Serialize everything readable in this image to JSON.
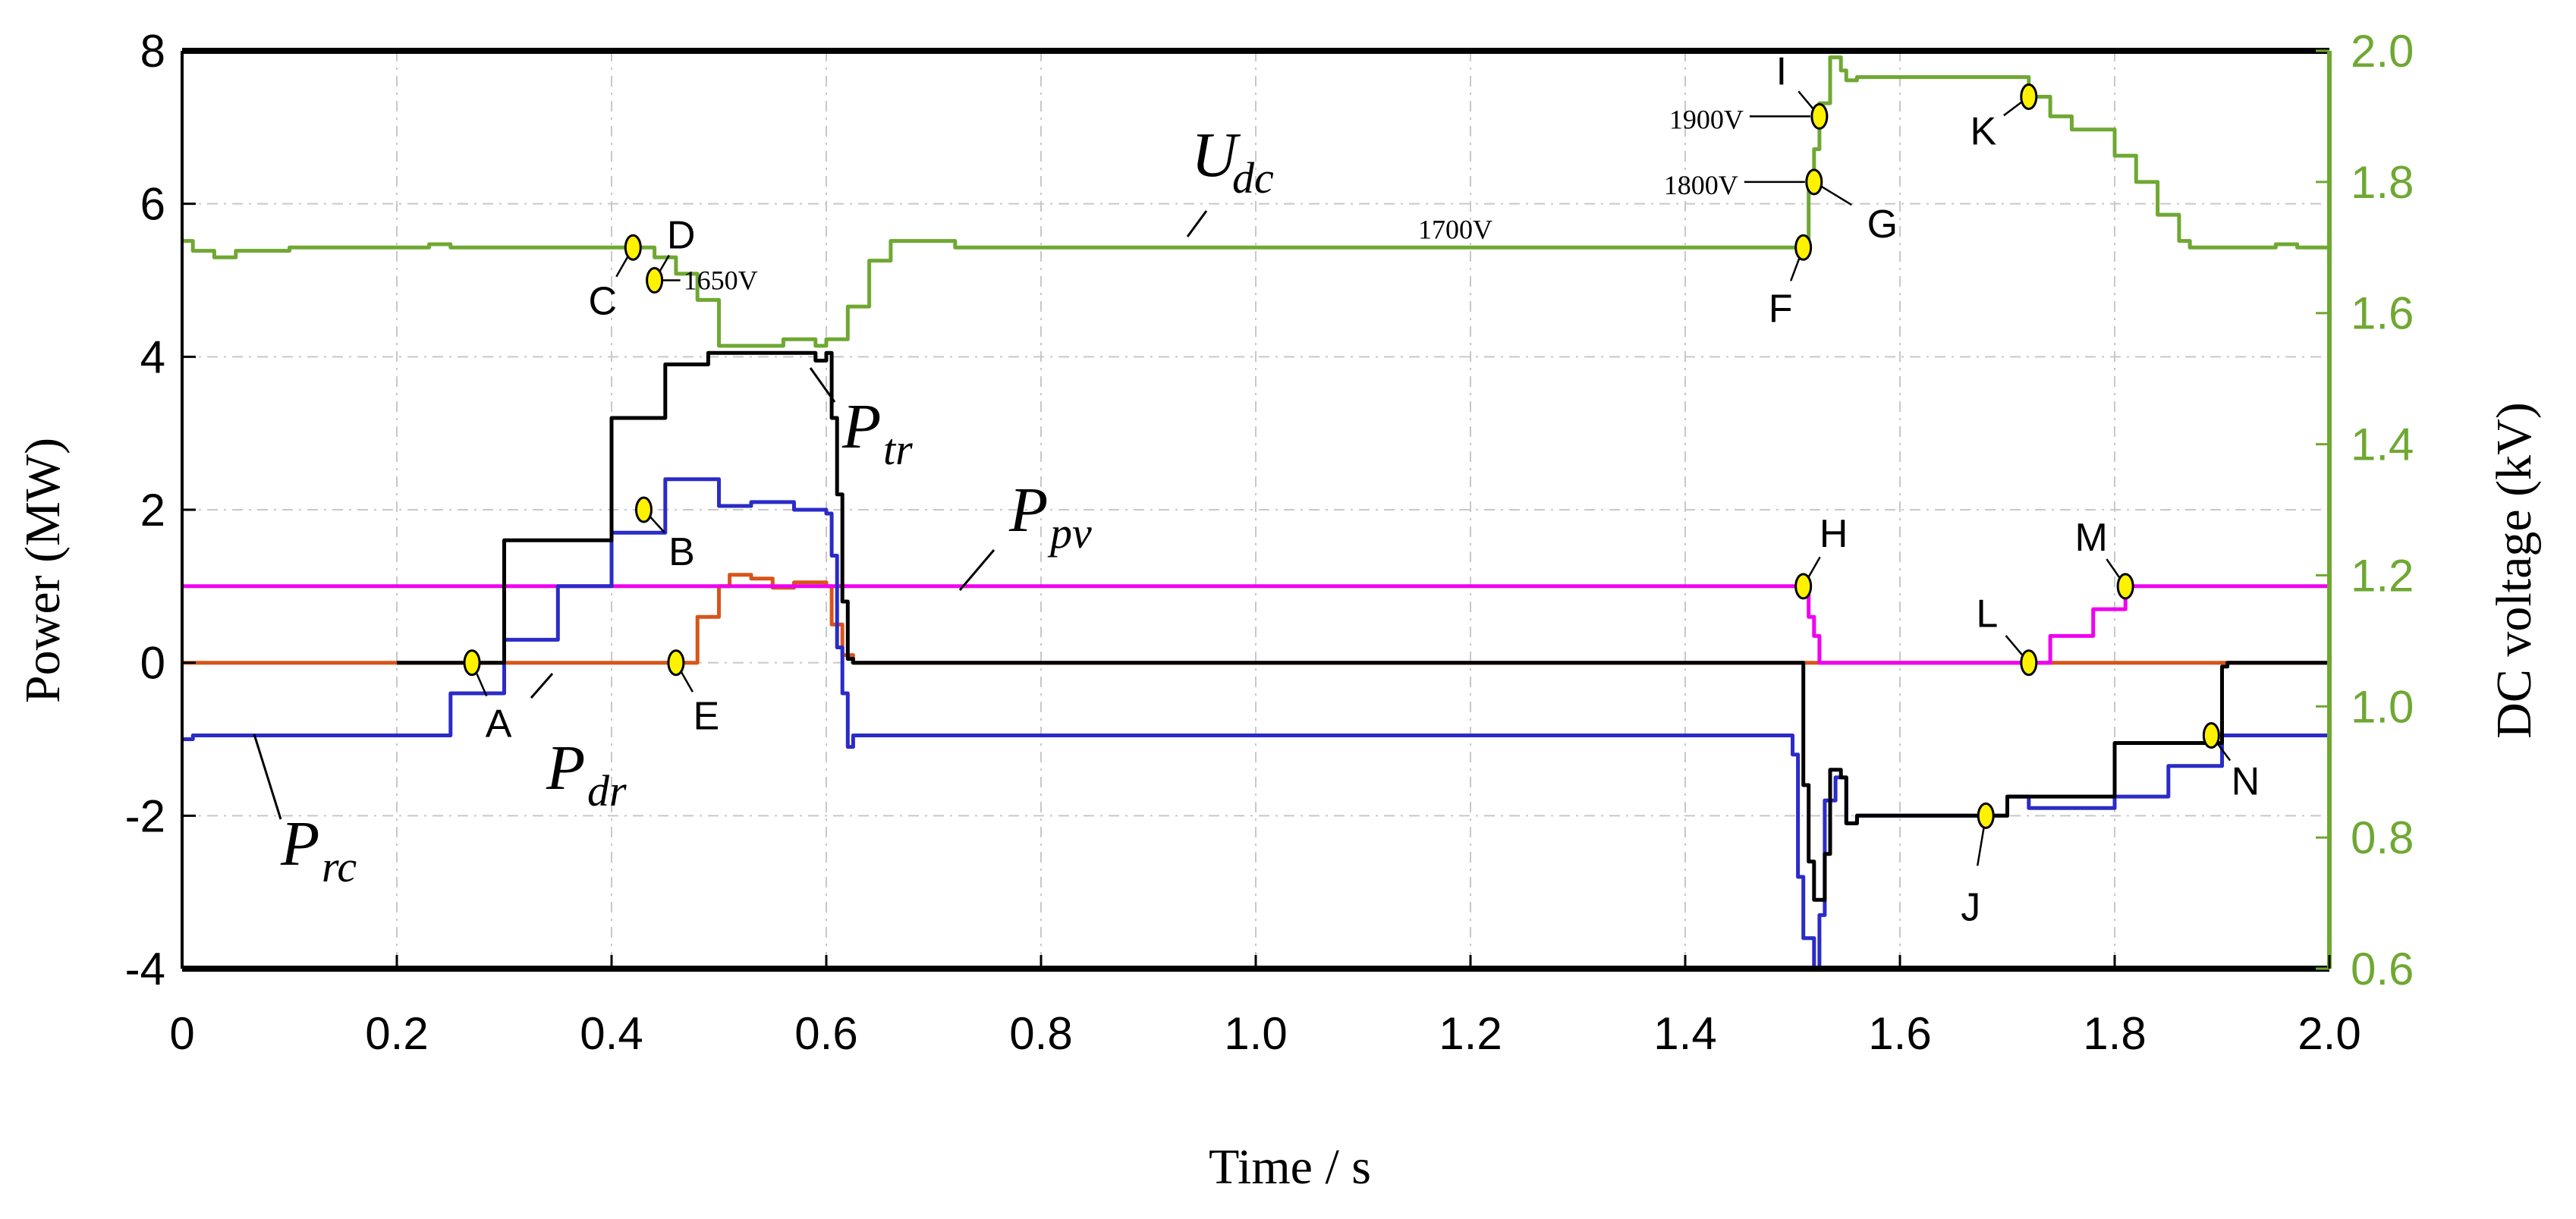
{
  "chart_data": {
    "type": "line",
    "xlabel": "Time / s",
    "ylabel_left": "Power (MW)",
    "ylabel_right": "DC voltage (kV)",
    "xlim": [
      0,
      2.0
    ],
    "ylim_left": [
      -4,
      8
    ],
    "ylim_right": [
      0.6,
      2.0
    ],
    "x_ticks": [
      "0",
      "0.2",
      "0.4",
      "0.6",
      "0.8",
      "1.0",
      "1.2",
      "1.4",
      "1.6",
      "1.8",
      "2.0"
    ],
    "y_left_ticks": [
      "8",
      "6",
      "4",
      "2",
      "0",
      "-2",
      "-4"
    ],
    "y_right_ticks": [
      "2.0",
      "1.8",
      "1.6",
      "1.4",
      "1.2",
      "1.0",
      "0.8",
      "0.6"
    ],
    "grid": true,
    "colors": {
      "udc": "#6fa832",
      "ptr": "#000000",
      "prc": "#2b2bc8",
      "ppv": "#f000f0",
      "pdr": "#d9541a",
      "right_axis": "#6fa832",
      "marker_fill": "#fff200"
    },
    "series": [
      {
        "name": "Udc",
        "main": "U",
        "sub": "dc",
        "axis": "right",
        "color": "#6fa832",
        "points": [
          [
            0,
            1.71
          ],
          [
            0.01,
            1.695
          ],
          [
            0.03,
            1.685
          ],
          [
            0.05,
            1.695
          ],
          [
            0.1,
            1.7
          ],
          [
            0.2,
            1.7
          ],
          [
            0.23,
            1.705
          ],
          [
            0.25,
            1.7
          ],
          [
            0.42,
            1.7
          ],
          [
            0.44,
            1.685
          ],
          [
            0.46,
            1.66
          ],
          [
            0.48,
            1.62
          ],
          [
            0.5,
            1.55
          ],
          [
            0.52,
            1.55
          ],
          [
            0.56,
            1.56
          ],
          [
            0.59,
            1.55
          ],
          [
            0.6,
            1.56
          ],
          [
            0.62,
            1.61
          ],
          [
            0.64,
            1.68
          ],
          [
            0.66,
            1.71
          ],
          [
            0.69,
            1.71
          ],
          [
            0.72,
            1.7
          ],
          [
            1.49,
            1.7
          ],
          [
            1.51,
            1.71
          ],
          [
            1.515,
            1.8
          ],
          [
            1.52,
            1.85
          ],
          [
            1.525,
            1.92
          ],
          [
            1.535,
            1.99
          ],
          [
            1.545,
            1.97
          ],
          [
            1.55,
            1.955
          ],
          [
            1.56,
            1.96
          ],
          [
            1.58,
            1.96
          ],
          [
            1.7,
            1.96
          ],
          [
            1.72,
            1.93
          ],
          [
            1.74,
            1.9
          ],
          [
            1.76,
            1.88
          ],
          [
            1.8,
            1.84
          ],
          [
            1.82,
            1.8
          ],
          [
            1.84,
            1.75
          ],
          [
            1.86,
            1.71
          ],
          [
            1.87,
            1.7
          ],
          [
            1.92,
            1.7
          ],
          [
            1.95,
            1.705
          ],
          [
            1.97,
            1.7
          ],
          [
            2.0,
            1.7
          ]
        ]
      },
      {
        "name": "Ptr",
        "main": "P",
        "sub": "tr",
        "axis": "left",
        "color": "#000000",
        "points": [
          [
            0.2,
            0
          ],
          [
            0.3,
            1.6
          ],
          [
            0.4,
            3.2
          ],
          [
            0.45,
            3.9
          ],
          [
            0.49,
            4.05
          ],
          [
            0.56,
            4.05
          ],
          [
            0.58,
            4.05
          ],
          [
            0.59,
            3.95
          ],
          [
            0.6,
            4.05
          ],
          [
            0.605,
            3.2
          ],
          [
            0.61,
            2.2
          ],
          [
            0.615,
            0.8
          ],
          [
            0.62,
            0.05
          ],
          [
            0.625,
            0
          ],
          [
            1.5,
            0
          ],
          [
            1.51,
            -1.6
          ],
          [
            1.515,
            -2.6
          ],
          [
            1.52,
            -3.1
          ],
          [
            1.53,
            -2.5
          ],
          [
            1.535,
            -1.4
          ],
          [
            1.545,
            -1.5
          ],
          [
            1.55,
            -2.1
          ],
          [
            1.56,
            -2.0
          ],
          [
            1.58,
            -2.0
          ],
          [
            1.68,
            -2.0
          ],
          [
            1.7,
            -1.75
          ],
          [
            1.8,
            -1.05
          ],
          [
            1.9,
            -0.05
          ],
          [
            1.905,
            0
          ],
          [
            2.0,
            0
          ]
        ]
      },
      {
        "name": "Prc",
        "main": "P",
        "sub": "rc",
        "axis": "left",
        "color": "#2b2bc8",
        "points": [
          [
            0,
            -1.0
          ],
          [
            0.01,
            -0.95
          ],
          [
            0.19,
            -0.95
          ],
          [
            0.25,
            -0.4
          ],
          [
            0.3,
            0.3
          ],
          [
            0.35,
            1.0
          ],
          [
            0.4,
            1.7
          ],
          [
            0.45,
            2.4
          ],
          [
            0.47,
            2.4
          ],
          [
            0.5,
            2.05
          ],
          [
            0.53,
            2.1
          ],
          [
            0.57,
            2.0
          ],
          [
            0.6,
            1.95
          ],
          [
            0.605,
            1.4
          ],
          [
            0.61,
            0.2
          ],
          [
            0.615,
            -0.4
          ],
          [
            0.62,
            -1.1
          ],
          [
            0.625,
            -0.95
          ],
          [
            1.48,
            -0.95
          ],
          [
            1.5,
            -1.2
          ],
          [
            1.505,
            -2.8
          ],
          [
            1.51,
            -3.6
          ],
          [
            1.52,
            -4.0
          ],
          [
            1.525,
            -3.3
          ],
          [
            1.53,
            -1.8
          ],
          [
            1.54,
            -1.5
          ],
          [
            1.55,
            -2.1
          ],
          [
            1.56,
            -2.0
          ],
          [
            1.68,
            -2.0
          ],
          [
            1.7,
            -1.75
          ],
          [
            1.72,
            -1.9
          ],
          [
            1.77,
            -1.9
          ],
          [
            1.8,
            -1.75
          ],
          [
            1.85,
            -1.35
          ],
          [
            1.9,
            -0.95
          ],
          [
            2.0,
            -0.95
          ]
        ]
      },
      {
        "name": "Ppv",
        "main": "P",
        "sub": "pv",
        "axis": "left",
        "color": "#f000f0",
        "points": [
          [
            0,
            1.0
          ],
          [
            1.51,
            1.0
          ],
          [
            1.515,
            0.6
          ],
          [
            1.52,
            0.35
          ],
          [
            1.525,
            0
          ],
          [
            1.72,
            0
          ],
          [
            1.74,
            0.35
          ],
          [
            1.78,
            0.7
          ],
          [
            1.81,
            1.0
          ],
          [
            2.0,
            1.0
          ]
        ]
      },
      {
        "name": "Pdr",
        "main": "P",
        "sub": "dr",
        "axis": "left",
        "color": "#d9541a",
        "points": [
          [
            0,
            0
          ],
          [
            0.46,
            0
          ],
          [
            0.48,
            0.6
          ],
          [
            0.5,
            1.0
          ],
          [
            0.51,
            1.15
          ],
          [
            0.53,
            1.1
          ],
          [
            0.55,
            0.98
          ],
          [
            0.57,
            1.05
          ],
          [
            0.6,
            1.0
          ],
          [
            0.605,
            0.5
          ],
          [
            0.615,
            0.1
          ],
          [
            0.625,
            0
          ],
          [
            2.0,
            0
          ]
        ]
      }
    ],
    "markers": [
      {
        "label": "A",
        "x": 0.27,
        "y": 0.0,
        "axis": "left"
      },
      {
        "label": "B",
        "x": 0.43,
        "y": 2.0,
        "axis": "left"
      },
      {
        "label": "C",
        "x": 0.42,
        "y": 1.7,
        "axis": "right"
      },
      {
        "label": "D",
        "x": 0.44,
        "y": 1.65,
        "axis": "right"
      },
      {
        "label": "E",
        "x": 0.46,
        "y": 0.0,
        "axis": "left"
      },
      {
        "label": "F",
        "x": 1.51,
        "y": 1.7,
        "axis": "right"
      },
      {
        "label": "G",
        "x": 1.52,
        "y": 1.8,
        "axis": "right"
      },
      {
        "label": "H",
        "x": 1.51,
        "y": 1.0,
        "axis": "left"
      },
      {
        "label": "I",
        "x": 1.525,
        "y": 1.9,
        "axis": "right"
      },
      {
        "label": "J",
        "x": 1.68,
        "y": -2.0,
        "axis": "left"
      },
      {
        "label": "K",
        "x": 1.72,
        "y": 1.93,
        "axis": "right"
      },
      {
        "label": "L",
        "x": 1.72,
        "y": 0.0,
        "axis": "left"
      },
      {
        "label": "M",
        "x": 1.81,
        "y": 1.0,
        "axis": "left"
      },
      {
        "label": "N",
        "x": 1.89,
        "y": -0.95,
        "axis": "left"
      }
    ],
    "voltage_annotations": [
      {
        "text": "1650V",
        "x": 0.44,
        "kv": 1.65
      },
      {
        "text": "1700V",
        "x": 1.2,
        "kv": 1.7
      },
      {
        "text": "1800V",
        "x": 1.52,
        "kv": 1.8
      },
      {
        "text": "1900V",
        "x": 1.525,
        "kv": 1.9
      }
    ]
  }
}
